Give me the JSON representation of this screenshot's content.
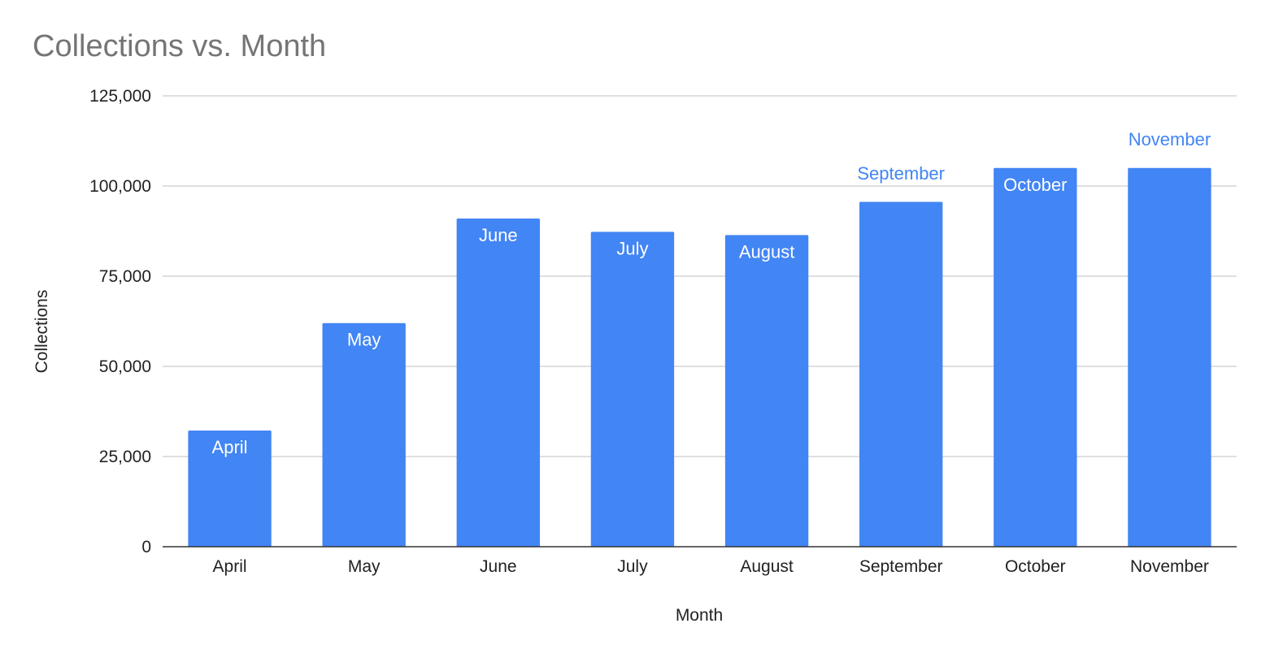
{
  "chart_data": {
    "type": "bar",
    "title": "Collections vs. Month",
    "xlabel": "Month",
    "ylabel": "Collections",
    "categories": [
      "April",
      "May",
      "June",
      "July",
      "August",
      "September",
      "October",
      "November"
    ],
    "series": [
      {
        "values": [
          32200,
          62000,
          91000,
          87300,
          86400,
          95600,
          105000,
          105000
        ],
        "color": "#4285F4",
        "data_labels": [
          "April",
          "May",
          "June",
          "July",
          "August",
          "September",
          "October",
          "November"
        ]
      }
    ],
    "ylim": [
      0,
      125000
    ],
    "yticks": [
      0,
      25000,
      50000,
      75000,
      100000,
      125000
    ],
    "ytick_labels": [
      "0",
      "25,000",
      "50,000",
      "75,000",
      "100,000",
      "125,000"
    ],
    "grid": true,
    "legend": "none",
    "colors": {
      "bar": "#4285F4",
      "label_inside": "#FFFFFF",
      "label_outside": "#4285F4",
      "gridline": "#CCCCCC",
      "baseline": "#333333",
      "title": "#757575",
      "text": "#222222"
    }
  }
}
